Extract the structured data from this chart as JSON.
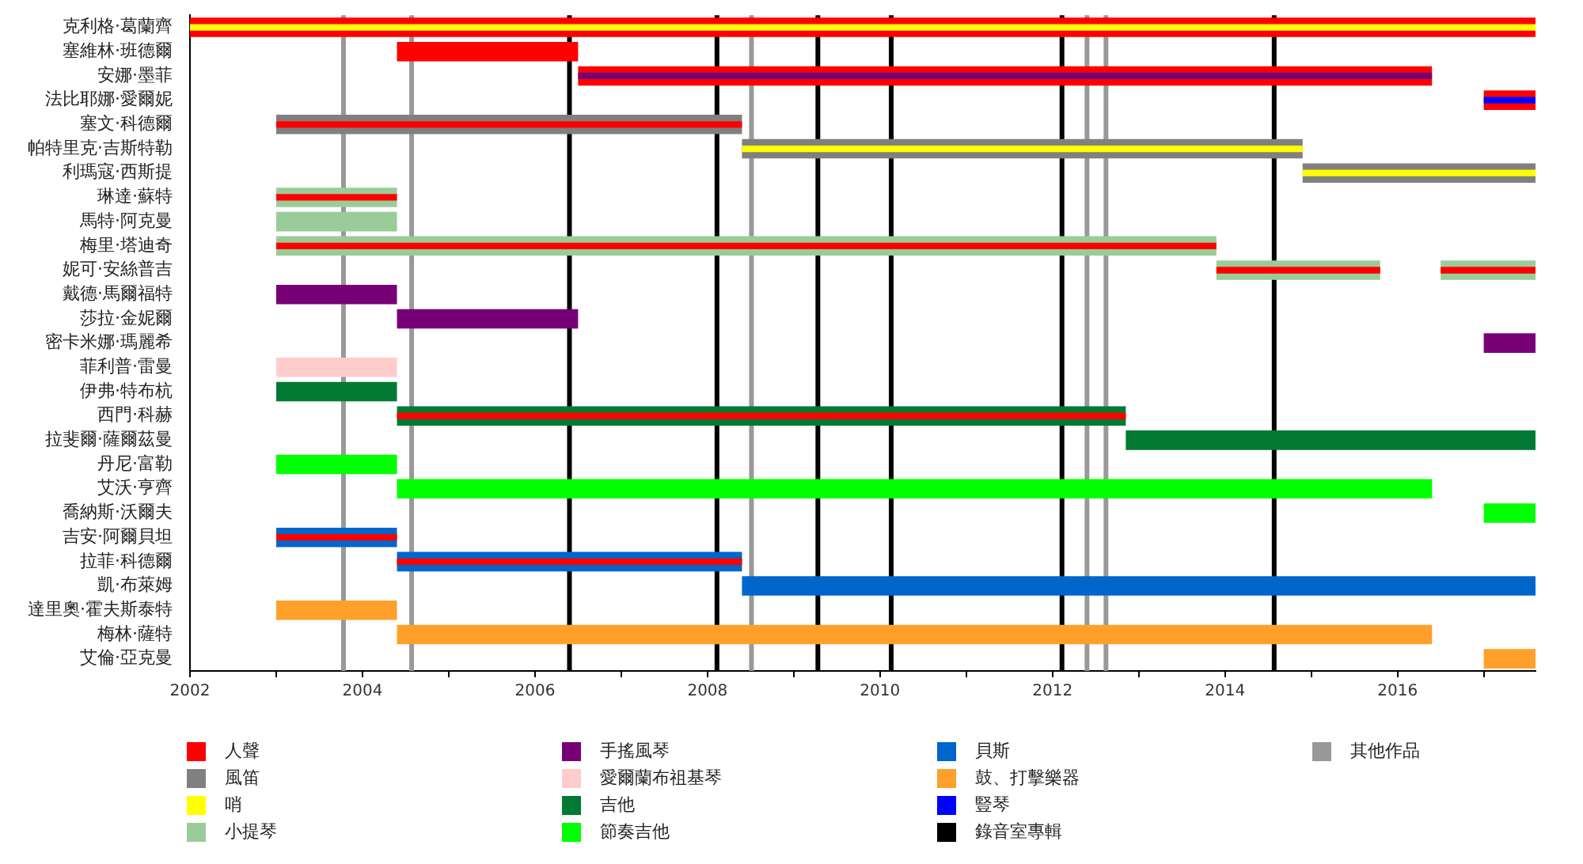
{
  "chart_data": {
    "type": "bar",
    "orientation": "horizontal",
    "legend": "bottom",
    "grid": false,
    "categories": [
      "克利格·葛蘭齊",
      "塞維林·班德爾",
      "安娜·墨菲",
      "法比耶娜·愛爾妮",
      "塞文·科德爾",
      "帕特里克·吉斯特勒",
      "利瑪寇·西斯提",
      "琳達·蘇特",
      "馬特·阿克曼",
      "梅里·塔迪奇",
      "妮可·安絲普吉",
      "戴德·馬爾福特",
      "莎拉·金妮爾",
      "密卡米娜·瑪麗希",
      "菲利普·雷曼",
      "伊弗·特布杭",
      "西門·科赫",
      "拉斐爾·薩爾茲曼",
      "丹尼·富勒",
      "艾沃·亨齊",
      "喬納斯·沃爾夫",
      "吉安·阿爾貝坦",
      "拉菲·科德爾",
      "凱·布萊姆",
      "達里奧·霍夫斯泰特",
      "梅林·薩特",
      "艾倫·亞克曼"
    ],
    "xlim": [
      2002,
      2017.6
    ],
    "xticks": [
      2002,
      {
        "value": 2003,
        "label": null
      },
      2004,
      {
        "value": 2005,
        "label": null
      },
      2006,
      {
        "value": 2007,
        "label": null
      },
      2008,
      {
        "value": 2009,
        "label": null
      },
      2010,
      {
        "value": 2011,
        "label": null
      },
      2012,
      {
        "value": 2013,
        "label": null
      },
      2014,
      {
        "value": 2015,
        "label": null
      },
      2016,
      {
        "value": 2017,
        "label": null
      }
    ],
    "series": [
      {
        "name": "人聲",
        "color": "#ff0000",
        "base": [
          2002,
          2004.4,
          2006.5,
          2017.0,
          null,
          null,
          null,
          null,
          null,
          null,
          null,
          null,
          null,
          null,
          null,
          null,
          null,
          null,
          null,
          null,
          null,
          null,
          null,
          null,
          null,
          null,
          null
        ],
        "values": [
          15.6,
          2.1,
          9.9,
          0.6,
          null,
          null,
          null,
          null,
          null,
          null,
          null,
          null,
          null,
          null,
          null,
          null,
          null,
          null,
          null,
          null,
          null,
          null,
          null,
          null,
          null,
          null,
          null
        ]
      },
      {
        "name": "風笛",
        "color": "#808080",
        "base": [
          null,
          null,
          null,
          null,
          2003.0,
          2008.4,
          2014.9,
          null,
          null,
          null,
          null,
          null,
          null,
          null,
          null,
          null,
          null,
          null,
          null,
          null,
          null,
          null,
          null,
          null,
          null,
          null,
          null
        ],
        "values": [
          null,
          null,
          null,
          null,
          5.4,
          6.5,
          2.7,
          null,
          null,
          null,
          null,
          null,
          null,
          null,
          null,
          null,
          null,
          null,
          null,
          null,
          null,
          null,
          null,
          null,
          null,
          null,
          null
        ]
      },
      {
        "name": "哨",
        "color": "#ffff00",
        "base": [
          2002,
          null,
          null,
          null,
          null,
          2008.4,
          2014.9,
          null,
          null,
          null,
          null,
          null,
          null,
          null,
          null,
          null,
          null,
          null,
          null,
          null,
          null,
          null,
          null,
          null,
          null,
          null,
          null
        ],
        "values": [
          15.6,
          null,
          null,
          null,
          null,
          6.5,
          2.7,
          null,
          null,
          null,
          null,
          null,
          null,
          null,
          null,
          null,
          null,
          null,
          null,
          null,
          null,
          null,
          null,
          null,
          null,
          null,
          null
        ]
      },
      {
        "name": "小提琴",
        "color": "#99cc99",
        "base": [
          null,
          null,
          null,
          null,
          null,
          null,
          null,
          2003.0,
          2003.0,
          2003.0,
          2013.9,
          null,
          null,
          null,
          null,
          null,
          null,
          null,
          null,
          null,
          null,
          null,
          null,
          null,
          null,
          null,
          null
        ],
        "values": [
          null,
          null,
          null,
          null,
          null,
          null,
          null,
          1.4,
          1.4,
          10.9,
          1.9,
          null,
          null,
          null,
          null,
          null,
          null,
          null,
          null,
          null,
          null,
          null,
          null,
          null,
          null,
          null,
          null
        ]
      },
      {
        "name": "手搖風琴",
        "color": "#770077",
        "base": [
          null,
          null,
          null,
          null,
          null,
          null,
          null,
          null,
          null,
          null,
          null,
          2003.0,
          2004.4,
          2017.0,
          null,
          null,
          null,
          null,
          null,
          null,
          null,
          null,
          null,
          null,
          null,
          null,
          null
        ],
        "values": [
          null,
          null,
          null,
          null,
          null,
          null,
          null,
          null,
          null,
          null,
          null,
          1.4,
          2.1,
          0.6,
          null,
          null,
          null,
          null,
          null,
          null,
          null,
          null,
          null,
          null,
          null,
          null,
          null
        ]
      },
      {
        "name": "愛爾蘭布祖基琴",
        "color": "#ffcccc",
        "base": [
          null,
          null,
          null,
          null,
          null,
          null,
          null,
          null,
          null,
          null,
          null,
          null,
          null,
          null,
          2003.0,
          null,
          null,
          null,
          null,
          null,
          null,
          null,
          null,
          null,
          null,
          null,
          null
        ],
        "values": [
          null,
          null,
          null,
          null,
          null,
          null,
          null,
          null,
          null,
          null,
          null,
          null,
          null,
          null,
          1.4,
          null,
          null,
          null,
          null,
          null,
          null,
          null,
          null,
          null,
          null,
          null,
          null
        ]
      },
      {
        "name": "吉他",
        "color": "#007a33",
        "base": [
          null,
          null,
          null,
          null,
          null,
          null,
          null,
          null,
          null,
          null,
          null,
          null,
          null,
          null,
          null,
          2003.0,
          2004.4,
          2012.85,
          null,
          null,
          null,
          null,
          null,
          null,
          null,
          null,
          null
        ],
        "values": [
          null,
          null,
          null,
          null,
          null,
          null,
          null,
          null,
          null,
          null,
          null,
          null,
          null,
          null,
          null,
          1.4,
          8.45,
          4.75,
          null,
          null,
          null,
          null,
          null,
          null,
          null,
          null,
          null
        ]
      },
      {
        "name": "節奏吉他",
        "color": "#00ff00",
        "base": [
          null,
          null,
          null,
          null,
          null,
          null,
          null,
          null,
          null,
          null,
          null,
          null,
          null,
          null,
          null,
          null,
          null,
          null,
          2003.0,
          2004.4,
          2017.0,
          null,
          null,
          null,
          null,
          null,
          null
        ],
        "values": [
          null,
          null,
          null,
          null,
          null,
          null,
          null,
          null,
          null,
          null,
          null,
          null,
          null,
          null,
          null,
          null,
          null,
          null,
          1.4,
          12.0,
          0.6,
          null,
          null,
          null,
          null,
          null,
          null
        ]
      },
      {
        "name": "貝斯",
        "color": "#0066cc",
        "base": [
          null,
          null,
          null,
          null,
          null,
          null,
          null,
          null,
          null,
          null,
          null,
          null,
          null,
          null,
          null,
          null,
          null,
          null,
          null,
          null,
          null,
          2003.0,
          2004.4,
          2008.4,
          null,
          null,
          null
        ],
        "values": [
          null,
          null,
          null,
          null,
          null,
          null,
          null,
          null,
          null,
          null,
          null,
          null,
          null,
          null,
          null,
          null,
          null,
          null,
          null,
          null,
          null,
          1.4,
          4.0,
          9.2,
          null,
          null,
          null
        ]
      },
      {
        "name": "鼓、打擊樂器",
        "color": "#ffa02a",
        "base": [
          null,
          null,
          null,
          null,
          null,
          null,
          null,
          null,
          null,
          null,
          null,
          null,
          null,
          null,
          null,
          null,
          null,
          null,
          null,
          null,
          null,
          null,
          null,
          null,
          2003.0,
          2004.4,
          2017.0
        ],
        "values": [
          null,
          null,
          null,
          null,
          null,
          null,
          null,
          null,
          null,
          null,
          null,
          null,
          null,
          null,
          null,
          null,
          null,
          null,
          null,
          null,
          null,
          null,
          null,
          null,
          1.4,
          12.0,
          0.6
        ]
      },
      {
        "name": "豎琴",
        "color": "#0000ff",
        "base": [
          null,
          null,
          null,
          2017.0,
          null,
          null,
          null,
          null,
          null,
          null,
          null,
          null,
          null,
          null,
          null,
          null,
          null,
          null,
          null,
          null,
          null,
          null,
          null,
          null,
          null,
          null,
          null
        ],
        "values": [
          null,
          null,
          null,
          0.6,
          null,
          null,
          null,
          null,
          null,
          null,
          null,
          null,
          null,
          null,
          null,
          null,
          null,
          null,
          null,
          null,
          null,
          null,
          null,
          null,
          null,
          null,
          null
        ]
      },
      {
        "color": "#99cc99",
        "base": [
          null,
          null,
          null,
          null,
          null,
          null,
          null,
          null,
          null,
          null,
          2016.5,
          null,
          null,
          null,
          null,
          null,
          null,
          null,
          null,
          null,
          null,
          null,
          null,
          null,
          null,
          null,
          null
        ],
        "values": [
          null,
          null,
          null,
          null,
          null,
          null,
          null,
          null,
          null,
          null,
          1.1,
          null,
          null,
          null,
          null,
          null,
          null,
          null,
          null,
          null,
          null,
          null,
          null,
          null,
          null,
          null,
          null
        ]
      },
      {
        "color": "#ff0000",
        "base": [
          null,
          null,
          null,
          null,
          2003.0,
          null,
          null,
          2003.0,
          null,
          2003.0,
          2013.9,
          null,
          null,
          null,
          null,
          null,
          2004.4,
          null,
          null,
          null,
          null,
          2003.0,
          2004.4,
          null,
          null,
          null,
          null
        ],
        "values": [
          null,
          null,
          null,
          null,
          5.4,
          null,
          null,
          1.4,
          null,
          10.9,
          1.9,
          null,
          null,
          null,
          null,
          null,
          8.45,
          null,
          null,
          null,
          null,
          1.4,
          4.0,
          null,
          null,
          null,
          null
        ]
      },
      {
        "color": "#ff0000",
        "base": [
          null,
          null,
          null,
          null,
          null,
          null,
          null,
          null,
          null,
          null,
          2016.5,
          null,
          null,
          null,
          null,
          null,
          null,
          null,
          null,
          null,
          null,
          null,
          null,
          null,
          null,
          null,
          null
        ],
        "values": [
          null,
          null,
          null,
          null,
          null,
          null,
          null,
          null,
          null,
          null,
          1.1,
          null,
          null,
          null,
          null,
          null,
          null,
          null,
          null,
          null,
          null,
          null,
          null,
          null,
          null,
          null,
          null
        ]
      },
      {
        "color": "#770077",
        "base": [
          null,
          null,
          2006.5,
          null,
          null,
          null,
          null,
          null,
          null,
          null,
          null,
          null,
          null,
          null,
          null,
          null,
          null,
          null,
          null,
          null,
          null,
          null,
          null,
          null,
          null,
          null,
          null
        ],
        "values": [
          null,
          null,
          9.9,
          null,
          null,
          null,
          null,
          null,
          null,
          null,
          null,
          null,
          null,
          null,
          null,
          null,
          null,
          null,
          null,
          null,
          null,
          null,
          null,
          null,
          null,
          null,
          null
        ]
      }
    ],
    "ref_lines": [
      {
        "axis": "x",
        "value": 2006.4,
        "color": "#000000",
        "label": "錄音室專輯"
      },
      {
        "axis": "x",
        "value": 2008.11,
        "color": "#000000"
      },
      {
        "axis": "x",
        "value": 2009.28,
        "color": "#000000"
      },
      {
        "axis": "x",
        "value": 2010.13,
        "color": "#000000"
      },
      {
        "axis": "x",
        "value": 2012.11,
        "color": "#000000"
      },
      {
        "axis": "x",
        "value": 2014.57,
        "color": "#000000"
      },
      {
        "axis": "x",
        "value": 2003.78,
        "color": "#999999",
        "label": "其他作品"
      },
      {
        "axis": "x",
        "value": 2004.57,
        "color": "#999999"
      },
      {
        "axis": "x",
        "value": 2008.51,
        "color": "#999999"
      },
      {
        "axis": "x",
        "value": 2012.4,
        "color": "#999999"
      },
      {
        "axis": "x",
        "value": 2012.62,
        "color": "#999999"
      }
    ]
  }
}
